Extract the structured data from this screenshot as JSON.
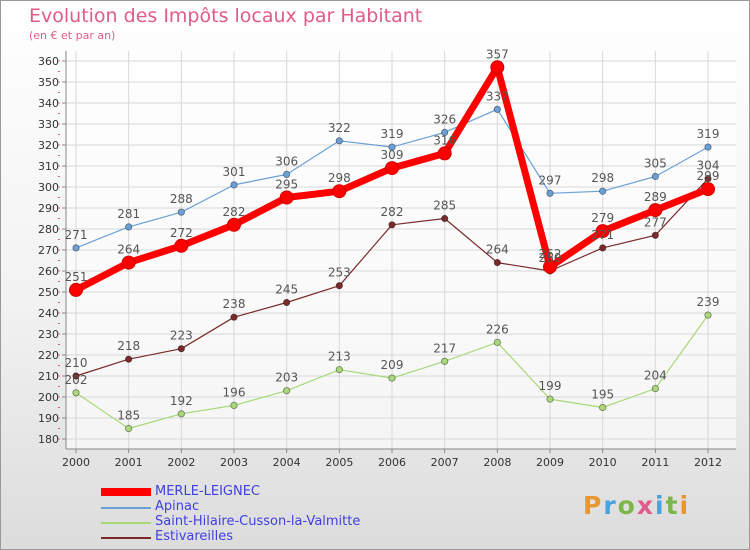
{
  "header": {
    "title": "Evolution des Impôts locaux par Habitant",
    "subtitle": "(en € et par an)"
  },
  "logo": {
    "text": "Proxiti"
  },
  "chart_data": {
    "type": "line",
    "title": "Evolution des Impôts locaux par Habitant",
    "subtitle": "(en € et par an)",
    "xlabel": "",
    "ylabel": "",
    "x": [
      2000,
      2001,
      2002,
      2003,
      2004,
      2005,
      2006,
      2007,
      2008,
      2009,
      2010,
      2011,
      2012
    ],
    "ylim": [
      180,
      360
    ],
    "ytick_step": 10,
    "grid": true,
    "legend": "bottom-left",
    "series": [
      {
        "name": "MERLE-LEIGNEC",
        "color": "#ff0000",
        "emphasis": true,
        "values": [
          251,
          264,
          272,
          282,
          295,
          298,
          309,
          316,
          357,
          262,
          279,
          289,
          299
        ]
      },
      {
        "name": "Apinac",
        "color": "#6aa0d6",
        "emphasis": false,
        "values": [
          271,
          281,
          288,
          301,
          306,
          322,
          319,
          326,
          337,
          297,
          298,
          305,
          319
        ]
      },
      {
        "name": "Saint-Hilaire-Cusson-la-Valmitte",
        "color": "#a8d878",
        "emphasis": false,
        "values": [
          202,
          185,
          192,
          196,
          203,
          213,
          209,
          217,
          226,
          199,
          195,
          204,
          239
        ]
      },
      {
        "name": "Estivareilles",
        "color": "#7a2a2a",
        "emphasis": false,
        "values": [
          210,
          218,
          223,
          238,
          245,
          253,
          282,
          285,
          264,
          260,
          271,
          277,
          304
        ]
      }
    ]
  }
}
